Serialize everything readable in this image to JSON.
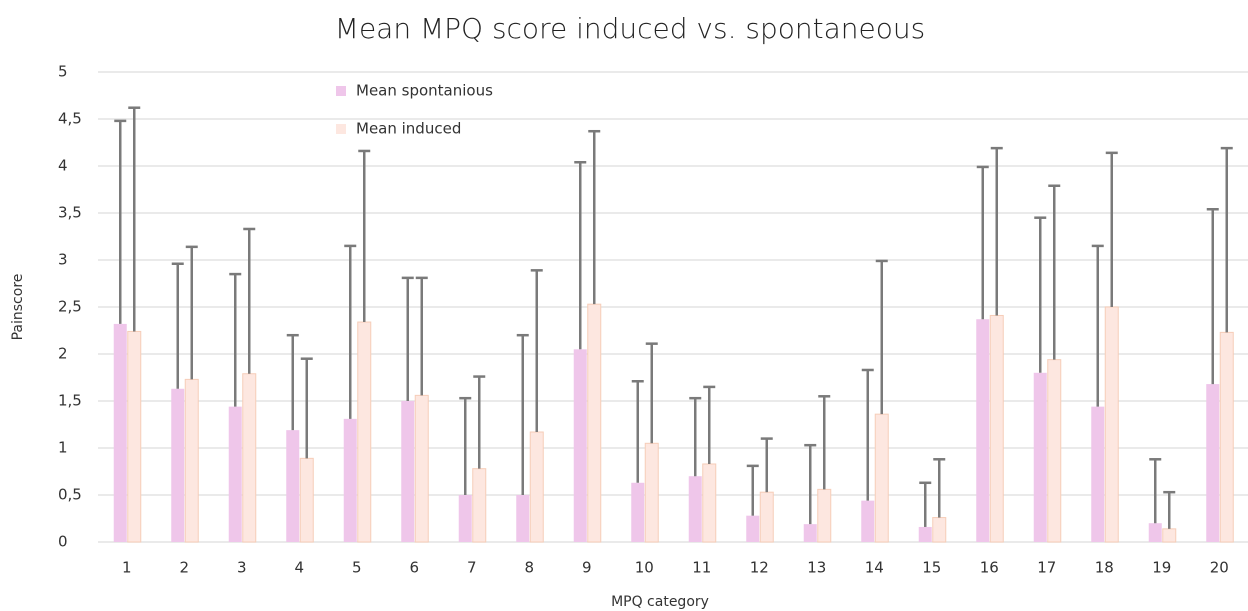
{
  "chart_data": {
    "type": "bar",
    "title": "Mean MPQ score induced vs. spontaneous",
    "x_label": "MPQ category",
    "y_label": "Painscore",
    "categories": [
      "1",
      "2",
      "3",
      "4",
      "5",
      "6",
      "7",
      "8",
      "9",
      "10",
      "11",
      "12",
      "13",
      "14",
      "15",
      "16",
      "17",
      "18",
      "19",
      "20"
    ],
    "series": [
      {
        "name": "Mean spontanious",
        "color": "#efc6ea",
        "error_color": "#7a7a7a",
        "values": [
          2.32,
          1.63,
          1.44,
          1.19,
          1.31,
          1.5,
          0.5,
          0.5,
          2.05,
          0.63,
          0.7,
          0.28,
          0.19,
          0.44,
          0.16,
          2.37,
          1.8,
          1.44,
          0.2,
          1.68
        ],
        "errors": [
          2.16,
          1.33,
          1.41,
          1.01,
          1.84,
          1.31,
          1.03,
          1.7,
          1.99,
          1.08,
          0.83,
          0.53,
          0.84,
          1.39,
          0.47,
          1.62,
          1.65,
          1.71,
          0.68,
          1.86
        ]
      },
      {
        "name": "Mean induced",
        "color": "#fde7e0",
        "error_color": "#7a7a7a",
        "values": [
          2.24,
          1.73,
          1.79,
          0.89,
          2.34,
          1.56,
          0.78,
          1.17,
          2.53,
          1.05,
          0.83,
          0.53,
          0.56,
          1.36,
          0.26,
          2.41,
          1.94,
          2.5,
          0.14,
          2.23
        ],
        "errors": [
          2.38,
          1.41,
          1.54,
          1.06,
          1.82,
          1.25,
          0.98,
          1.72,
          1.84,
          1.06,
          0.82,
          0.57,
          0.99,
          1.63,
          0.62,
          1.78,
          1.85,
          1.64,
          0.39,
          1.96
        ]
      }
    ],
    "ylim": [
      0,
      5
    ],
    "yticks": [
      0,
      {
        "value": 0.5,
        "label": "0,5"
      },
      1,
      {
        "value": 1.5,
        "label": "1,5"
      },
      2,
      {
        "value": 2.5,
        "label": "2,5"
      },
      3,
      {
        "value": 3.5,
        "label": "3,5"
      },
      4,
      {
        "value": 4.5,
        "label": "4,5"
      },
      5
    ],
    "grid": true,
    "legend": "top-left"
  }
}
